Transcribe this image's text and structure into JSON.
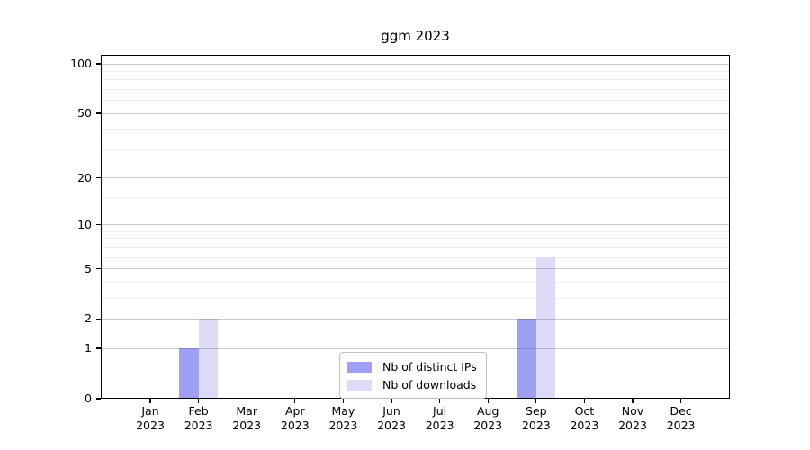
{
  "chart_data": {
    "type": "bar",
    "title": "ggm 2023",
    "categories": [
      "Jan 2023",
      "Feb 2023",
      "Mar 2023",
      "Apr 2023",
      "May 2023",
      "Jun 2023",
      "Jul 2023",
      "Aug 2023",
      "Sep 2023",
      "Oct 2023",
      "Nov 2023",
      "Dec 2023"
    ],
    "series": [
      {
        "name": "Nb of distinct IPs",
        "color": "#9f9ff3",
        "values": [
          0,
          1,
          0,
          0,
          0,
          0,
          0,
          0,
          2,
          0,
          0,
          0
        ]
      },
      {
        "name": "Nb of downloads",
        "color": "#dcdcf9",
        "values": [
          0,
          2,
          0,
          0,
          0,
          0,
          0,
          0,
          6,
          0,
          0,
          0
        ]
      }
    ],
    "y_axis": {
      "scale": "log10(1+y)",
      "tick_labels": [
        "100",
        "50",
        "20",
        "10",
        "5",
        "2",
        "1",
        "0"
      ],
      "ticks": [
        100,
        50,
        20,
        10,
        5,
        2,
        1,
        0
      ],
      "minor_gridlines": [
        3,
        4,
        6,
        7,
        8,
        9,
        15,
        30,
        40,
        60,
        70,
        80,
        90
      ],
      "range_top": 113
    },
    "x_axis": {
      "tick_count": 12
    },
    "legend": {
      "position": "lower center",
      "items": [
        "Nb of distinct IPs",
        "Nb of downloads"
      ]
    },
    "grid": true,
    "xlabel": "",
    "ylabel": ""
  }
}
